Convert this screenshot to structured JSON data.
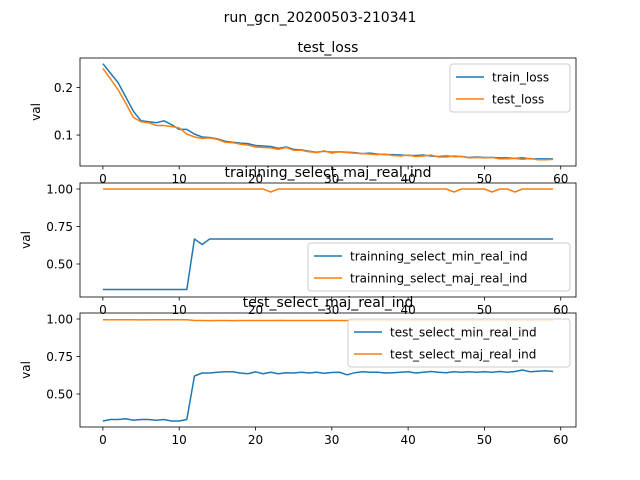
{
  "figure_title": "run_gcn_20200503-210341",
  "colors": {
    "series_1": "#1f77b4",
    "series_2": "#ff7f0e",
    "axis": "#000000"
  },
  "chart_data": [
    {
      "type": "line",
      "title": "test_loss",
      "xlabel": "",
      "ylabel": "val",
      "xlim": [
        -3,
        62
      ],
      "ylim": [
        0.035,
        0.262
      ],
      "xticks": [
        0,
        10,
        20,
        30,
        40,
        50,
        60
      ],
      "yticks": [
        0.1,
        0.2
      ],
      "ytick_labels": [
        "0.1",
        "0.2"
      ],
      "legend_position": "upper-right",
      "x": [
        0,
        1,
        2,
        3,
        4,
        5,
        6,
        7,
        8,
        9,
        10,
        11,
        12,
        13,
        14,
        15,
        16,
        17,
        18,
        19,
        20,
        21,
        22,
        23,
        24,
        25,
        26,
        27,
        28,
        29,
        30,
        31,
        32,
        33,
        34,
        35,
        36,
        37,
        38,
        39,
        40,
        41,
        42,
        43,
        44,
        45,
        46,
        47,
        48,
        49,
        50,
        51,
        52,
        53,
        54,
        55,
        56,
        57,
        58,
        59
      ],
      "series": [
        {
          "name": "train_loss",
          "values": [
            0.25,
            0.23,
            0.21,
            0.18,
            0.15,
            0.13,
            0.128,
            0.126,
            0.13,
            0.122,
            0.112,
            0.112,
            0.102,
            0.096,
            0.095,
            0.092,
            0.087,
            0.085,
            0.083,
            0.082,
            0.078,
            0.077,
            0.076,
            0.072,
            0.075,
            0.07,
            0.069,
            0.066,
            0.064,
            0.066,
            0.064,
            0.065,
            0.064,
            0.063,
            0.061,
            0.062,
            0.06,
            0.059,
            0.059,
            0.058,
            0.057,
            0.057,
            0.058,
            0.056,
            0.055,
            0.056,
            0.055,
            0.055,
            0.053,
            0.054,
            0.053,
            0.053,
            0.052,
            0.052,
            0.051,
            0.052,
            0.05,
            0.05,
            0.05,
            0.05
          ]
        },
        {
          "name": "test_loss",
          "values": [
            0.24,
            0.218,
            0.195,
            0.167,
            0.137,
            0.128,
            0.126,
            0.12,
            0.12,
            0.118,
            0.115,
            0.102,
            0.096,
            0.093,
            0.094,
            0.091,
            0.085,
            0.084,
            0.081,
            0.079,
            0.075,
            0.074,
            0.073,
            0.07,
            0.074,
            0.068,
            0.068,
            0.065,
            0.063,
            0.067,
            0.062,
            0.065,
            0.063,
            0.062,
            0.061,
            0.06,
            0.059,
            0.06,
            0.057,
            0.056,
            0.058,
            0.055,
            0.056,
            0.058,
            0.054,
            0.054,
            0.056,
            0.055,
            0.052,
            0.053,
            0.052,
            0.053,
            0.05,
            0.05,
            0.051,
            0.049,
            0.051,
            0.048,
            0.048,
            0.049
          ]
        }
      ]
    },
    {
      "type": "line",
      "title": "trainning_select_maj_real_ind",
      "xlabel": "",
      "ylabel": "val",
      "xlim": [
        -3,
        62
      ],
      "ylim": [
        0.28,
        1.04
      ],
      "xticks": [
        0,
        10,
        20,
        30,
        40,
        50,
        60
      ],
      "yticks": [
        0.5,
        0.75,
        1.0
      ],
      "ytick_labels": [
        "0.50",
        "0.75",
        "1.00"
      ],
      "legend_position": "lower-right",
      "x": [
        0,
        1,
        2,
        3,
        4,
        5,
        6,
        7,
        8,
        9,
        10,
        11,
        12,
        13,
        14,
        15,
        16,
        17,
        18,
        19,
        20,
        21,
        22,
        23,
        24,
        25,
        26,
        27,
        28,
        29,
        30,
        31,
        32,
        33,
        34,
        35,
        36,
        37,
        38,
        39,
        40,
        41,
        42,
        43,
        44,
        45,
        46,
        47,
        48,
        49,
        50,
        51,
        52,
        53,
        54,
        55,
        56,
        57,
        58,
        59
      ],
      "series": [
        {
          "name": "trainning_select_min_real_ind",
          "values": [
            0.33,
            0.33,
            0.33,
            0.33,
            0.33,
            0.33,
            0.33,
            0.33,
            0.33,
            0.33,
            0.33,
            0.33,
            0.667,
            0.63,
            0.667,
            0.667,
            0.667,
            0.667,
            0.667,
            0.667,
            0.667,
            0.667,
            0.667,
            0.667,
            0.667,
            0.667,
            0.667,
            0.667,
            0.667,
            0.667,
            0.667,
            0.667,
            0.667,
            0.667,
            0.667,
            0.667,
            0.667,
            0.667,
            0.667,
            0.667,
            0.667,
            0.667,
            0.667,
            0.667,
            0.667,
            0.667,
            0.667,
            0.667,
            0.667,
            0.667,
            0.667,
            0.667,
            0.667,
            0.667,
            0.667,
            0.667,
            0.667,
            0.667,
            0.667,
            0.667
          ]
        },
        {
          "name": "trainning_select_maj_real_ind",
          "values": [
            1.0,
            1.0,
            1.0,
            1.0,
            1.0,
            1.0,
            1.0,
            1.0,
            1.0,
            1.0,
            1.0,
            1.0,
            1.0,
            1.0,
            1.0,
            1.0,
            1.0,
            1.0,
            1.0,
            1.0,
            1.0,
            1.0,
            0.98,
            1.0,
            1.0,
            1.0,
            1.0,
            1.0,
            1.0,
            1.0,
            1.0,
            1.0,
            1.0,
            1.0,
            1.0,
            1.0,
            1.0,
            1.0,
            1.0,
            1.0,
            1.0,
            1.0,
            1.0,
            1.0,
            1.0,
            1.0,
            0.98,
            1.0,
            1.0,
            1.0,
            1.0,
            0.98,
            1.0,
            1.0,
            0.98,
            1.0,
            1.0,
            1.0,
            1.0,
            1.0
          ]
        }
      ]
    },
    {
      "type": "line",
      "title": "test_select_maj_real_ind",
      "xlabel": "",
      "ylabel": "val",
      "xlim": [
        -3,
        62
      ],
      "ylim": [
        0.28,
        1.04
      ],
      "xticks": [
        0,
        10,
        20,
        30,
        40,
        50,
        60
      ],
      "yticks": [
        0.5,
        0.75,
        1.0
      ],
      "ytick_labels": [
        "0.50",
        "0.75",
        "1.00"
      ],
      "legend_position": "upper-right",
      "x": [
        0,
        1,
        2,
        3,
        4,
        5,
        6,
        7,
        8,
        9,
        10,
        11,
        12,
        13,
        14,
        15,
        16,
        17,
        18,
        19,
        20,
        21,
        22,
        23,
        24,
        25,
        26,
        27,
        28,
        29,
        30,
        31,
        32,
        33,
        34,
        35,
        36,
        37,
        38,
        39,
        40,
        41,
        42,
        43,
        44,
        45,
        46,
        47,
        48,
        49,
        50,
        51,
        52,
        53,
        54,
        55,
        56,
        57,
        58,
        59
      ],
      "series": [
        {
          "name": "test_select_min_real_ind",
          "values": [
            0.32,
            0.33,
            0.33,
            0.335,
            0.325,
            0.33,
            0.33,
            0.325,
            0.33,
            0.32,
            0.32,
            0.33,
            0.62,
            0.64,
            0.64,
            0.645,
            0.648,
            0.648,
            0.64,
            0.635,
            0.648,
            0.635,
            0.645,
            0.635,
            0.642,
            0.64,
            0.645,
            0.64,
            0.645,
            0.638,
            0.643,
            0.645,
            0.628,
            0.642,
            0.648,
            0.645,
            0.645,
            0.64,
            0.642,
            0.645,
            0.648,
            0.64,
            0.645,
            0.65,
            0.645,
            0.642,
            0.648,
            0.645,
            0.648,
            0.645,
            0.648,
            0.645,
            0.65,
            0.645,
            0.65,
            0.66,
            0.648,
            0.652,
            0.655,
            0.65
          ]
        },
        {
          "name": "test_select_maj_real_ind",
          "values": [
            0.995,
            0.995,
            0.995,
            0.995,
            0.995,
            0.994,
            0.995,
            0.995,
            0.995,
            0.995,
            0.995,
            0.995,
            0.99,
            0.99,
            0.989,
            0.99,
            0.99,
            0.989,
            0.99,
            0.99,
            0.99,
            0.99,
            0.99,
            0.991,
            0.99,
            0.99,
            0.99,
            0.99,
            0.99,
            0.99,
            0.991,
            0.99,
            0.99,
            0.99,
            0.99,
            0.99,
            0.99,
            0.99,
            0.99,
            0.99,
            0.99,
            0.99,
            0.99,
            0.99,
            0.99,
            0.99,
            0.99,
            0.99,
            0.99,
            0.99,
            0.99,
            0.99,
            0.99,
            0.99,
            0.99,
            0.99,
            0.99,
            0.99,
            0.99,
            0.99
          ]
        }
      ]
    }
  ]
}
